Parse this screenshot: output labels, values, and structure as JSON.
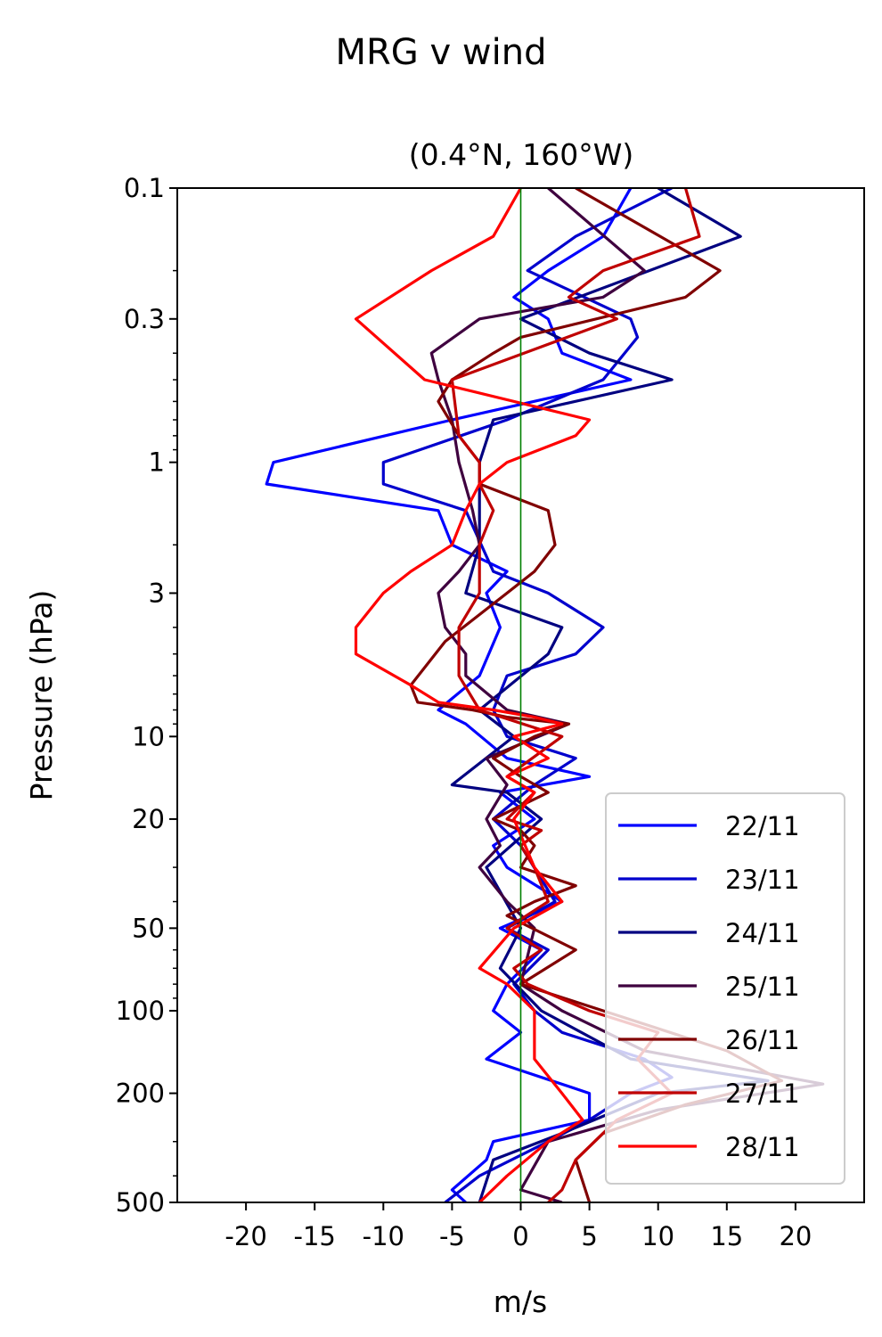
{
  "chart_data": {
    "type": "line",
    "title": "MRG v wind",
    "subtitle": "(0.4°N, 160°W)",
    "xlabel": "m/s",
    "ylabel": "Pressure (hPa)",
    "xlim": [
      -25,
      25
    ],
    "ylim": [
      500,
      0.1
    ],
    "y_scale": "log",
    "x_ticks": [
      -20,
      -15,
      -10,
      -5,
      0,
      5,
      10,
      15,
      20
    ],
    "x_tick_labels": [
      "-20",
      "-15",
      "-10",
      "-5",
      "0",
      "5",
      "10",
      "15",
      "20"
    ],
    "y_ticks": [
      0.1,
      0.3,
      1,
      3,
      10,
      20,
      50,
      100,
      200,
      500
    ],
    "y_tick_labels": [
      "0.1",
      "0.3",
      "1",
      "3",
      "10",
      "20",
      "50",
      "100",
      "200",
      "500"
    ],
    "zero_line_color": "#008000",
    "legend_position": "lower-right",
    "series": [
      {
        "name": "22/11",
        "color": "#0000ff",
        "points": [
          [
            8,
            0.1
          ],
          [
            6,
            0.15
          ],
          [
            2,
            0.2
          ],
          [
            -0.5,
            0.25
          ],
          [
            2,
            0.3
          ],
          [
            3,
            0.4
          ],
          [
            8,
            0.5
          ],
          [
            -5,
            0.7
          ],
          [
            -18,
            1.0
          ],
          [
            -18.5,
            1.2
          ],
          [
            -6,
            1.5
          ],
          [
            -5,
            2.0
          ],
          [
            -1,
            2.5
          ],
          [
            -2.5,
            3.0
          ],
          [
            -1.5,
            4.0
          ],
          [
            -3,
            6.0
          ],
          [
            -6,
            8.0
          ],
          [
            -4,
            9.0
          ],
          [
            -1,
            12.0
          ],
          [
            5,
            14.0
          ],
          [
            -1.5,
            16.0
          ],
          [
            1,
            20.0
          ],
          [
            -2,
            25.0
          ],
          [
            -1,
            30.0
          ],
          [
            3,
            40.0
          ],
          [
            -1.5,
            50.0
          ],
          [
            1.5,
            60.0
          ],
          [
            -1,
            80.0
          ],
          [
            -2,
            100.0
          ],
          [
            0,
            120.0
          ],
          [
            -2.5,
            150.0
          ],
          [
            5,
            200.0
          ],
          [
            5,
            250.0
          ],
          [
            -2,
            300.0
          ],
          [
            -2.5,
            350.0
          ],
          [
            -5,
            450.0
          ],
          [
            -4,
            500.0
          ]
        ]
      },
      {
        "name": "23/11",
        "color": "#0000cd",
        "points": [
          [
            11,
            0.1
          ],
          [
            4,
            0.15
          ],
          [
            0.5,
            0.2
          ],
          [
            8,
            0.3
          ],
          [
            8.5,
            0.35
          ],
          [
            6,
            0.5
          ],
          [
            -1,
            0.7
          ],
          [
            -10,
            1.0
          ],
          [
            -10,
            1.2
          ],
          [
            -4,
            1.5
          ],
          [
            -2,
            2.5
          ],
          [
            2,
            3.0
          ],
          [
            6,
            4.0
          ],
          [
            4,
            5.0
          ],
          [
            -1,
            6.0
          ],
          [
            -2,
            8.0
          ],
          [
            -1,
            10.0
          ],
          [
            4,
            12.0
          ],
          [
            1,
            15.0
          ],
          [
            -2,
            20.0
          ],
          [
            0,
            25.0
          ],
          [
            2.5,
            40.0
          ],
          [
            -1,
            50.0
          ],
          [
            2,
            60.0
          ],
          [
            -0.5,
            80.0
          ],
          [
            1,
            100.0
          ],
          [
            3,
            120.0
          ],
          [
            9,
            150.0
          ],
          [
            11,
            175.0
          ],
          [
            8,
            200.0
          ],
          [
            5,
            250.0
          ],
          [
            2,
            300.0
          ],
          [
            -3,
            400.0
          ],
          [
            -5.5,
            500.0
          ]
        ]
      },
      {
        "name": "24/11",
        "color": "#000080",
        "points": [
          [
            10,
            0.1
          ],
          [
            16,
            0.15
          ],
          [
            0,
            0.3
          ],
          [
            5,
            0.4
          ],
          [
            11,
            0.5
          ],
          [
            -2,
            0.7
          ],
          [
            -3,
            1.0
          ],
          [
            -3,
            2.0
          ],
          [
            -4,
            3.0
          ],
          [
            3,
            4.0
          ],
          [
            2,
            5.0
          ],
          [
            -3,
            8.0
          ],
          [
            -0.5,
            10.0
          ],
          [
            -5,
            15.0
          ],
          [
            -1,
            16.0
          ],
          [
            1.5,
            20.0
          ],
          [
            -2.5,
            30.0
          ],
          [
            0,
            50.0
          ],
          [
            -1.5,
            70.0
          ],
          [
            1.5,
            100.0
          ],
          [
            8,
            150.0
          ],
          [
            18,
            180.0
          ],
          [
            10,
            200.0
          ],
          [
            3,
            280.0
          ],
          [
            -2,
            350.0
          ],
          [
            -3,
            500.0
          ]
        ]
      },
      {
        "name": "25/11",
        "color": "#3f003f",
        "points": [
          [
            2,
            0.1
          ],
          [
            9,
            0.2
          ],
          [
            6,
            0.25
          ],
          [
            -3,
            0.3
          ],
          [
            -6.5,
            0.4
          ],
          [
            -6,
            0.5
          ],
          [
            -5,
            0.7
          ],
          [
            -4.5,
            1.0
          ],
          [
            -3.5,
            1.5
          ],
          [
            -3,
            2.0
          ],
          [
            -4.5,
            2.5
          ],
          [
            -6,
            3.0
          ],
          [
            -5.5,
            4.0
          ],
          [
            -4,
            5.0
          ],
          [
            -4,
            6.0
          ],
          [
            -1,
            8.0
          ],
          [
            3.5,
            9.0
          ],
          [
            -2.5,
            12.0
          ],
          [
            -1,
            15.0
          ],
          [
            -2.5,
            20.0
          ],
          [
            -1.5,
            25.0
          ],
          [
            -3,
            30.0
          ],
          [
            -1,
            40.0
          ],
          [
            1,
            50.0
          ],
          [
            0,
            80.0
          ],
          [
            3,
            100.0
          ],
          [
            9,
            140.0
          ],
          [
            22,
            185.0
          ],
          [
            10,
            230.0
          ],
          [
            2,
            300.0
          ],
          [
            0,
            450.0
          ],
          [
            3,
            500.0
          ]
        ]
      },
      {
        "name": "26/11",
        "color": "#800000",
        "points": [
          [
            4,
            0.1
          ],
          [
            14.5,
            0.2
          ],
          [
            12,
            0.25
          ],
          [
            0,
            0.35
          ],
          [
            -2,
            0.4
          ],
          [
            -5,
            0.5
          ],
          [
            -6,
            0.6
          ],
          [
            -4.5,
            0.8
          ],
          [
            -3,
            1.0
          ],
          [
            -3,
            1.2
          ],
          [
            2,
            1.5
          ],
          [
            2.5,
            2.0
          ],
          [
            1,
            2.5
          ],
          [
            -1,
            3.0
          ],
          [
            -5.5,
            4.5
          ],
          [
            -8,
            6.5
          ],
          [
            -7.5,
            7.5
          ],
          [
            -3.5,
            8.0
          ],
          [
            -1,
            8.5
          ],
          [
            3.5,
            9.0
          ],
          [
            1,
            10.0
          ],
          [
            -2,
            12.0
          ],
          [
            0,
            14.0
          ],
          [
            2,
            16.0
          ],
          [
            -2,
            20.0
          ],
          [
            0,
            22.0
          ],
          [
            1,
            25.0
          ],
          [
            0,
            30.0
          ],
          [
            4,
            35.0
          ],
          [
            1,
            40.0
          ],
          [
            -1,
            45.0
          ],
          [
            4,
            60.0
          ],
          [
            0,
            80.0
          ],
          [
            6,
            100.0
          ],
          [
            15,
            140.0
          ],
          [
            19,
            180.0
          ],
          [
            12,
            220.0
          ],
          [
            6,
            280.0
          ],
          [
            4,
            350.0
          ],
          [
            5,
            500.0
          ]
        ]
      },
      {
        "name": "27/11",
        "color": "#c00000",
        "points": [
          [
            12,
            0.1
          ],
          [
            13,
            0.15
          ],
          [
            6,
            0.2
          ],
          [
            3.5,
            0.25
          ],
          [
            7,
            0.3
          ],
          [
            -5,
            0.5
          ],
          [
            -4.5,
            0.8
          ],
          [
            -3,
            1.0
          ],
          [
            -3,
            1.2
          ],
          [
            -2,
            1.5
          ],
          [
            -3,
            2.0
          ],
          [
            -3,
            3.0
          ],
          [
            -4.5,
            4.0
          ],
          [
            -4.5,
            5.0
          ],
          [
            -4.5,
            6.0
          ],
          [
            -3,
            8.0
          ],
          [
            3,
            10.0
          ],
          [
            -1,
            14.0
          ],
          [
            1,
            16.0
          ],
          [
            -1,
            20.0
          ],
          [
            1.5,
            22.0
          ],
          [
            0,
            25.0
          ],
          [
            1,
            30.0
          ],
          [
            2,
            40.0
          ],
          [
            -1,
            50.0
          ],
          [
            1.5,
            60.0
          ],
          [
            -0.5,
            70.0
          ],
          [
            0.5,
            80.0
          ],
          [
            5,
            100.0
          ],
          [
            10,
            120.0
          ],
          [
            8.5,
            150.0
          ],
          [
            11,
            200.0
          ],
          [
            7,
            250.0
          ],
          [
            4,
            350.0
          ],
          [
            3,
            450.0
          ],
          [
            2,
            500.0
          ]
        ]
      },
      {
        "name": "28/11",
        "color": "#ff0000",
        "points": [
          [
            0,
            0.1
          ],
          [
            -2,
            0.15
          ],
          [
            -6.5,
            0.2
          ],
          [
            -12,
            0.3
          ],
          [
            -7,
            0.5
          ],
          [
            5,
            0.7
          ],
          [
            4,
            0.8
          ],
          [
            -1,
            1.0
          ],
          [
            -3,
            1.2
          ],
          [
            -4,
            1.5
          ],
          [
            -5,
            2.0
          ],
          [
            -8,
            2.5
          ],
          [
            -10,
            3.0
          ],
          [
            -12,
            4.0
          ],
          [
            -12,
            5.0
          ],
          [
            -8,
            6.5
          ],
          [
            -6,
            7.5
          ],
          [
            -2,
            8.0
          ],
          [
            1,
            8.5
          ],
          [
            3,
            9.0
          ],
          [
            -0.5,
            10.0
          ],
          [
            2,
            12.0
          ],
          [
            -1,
            14.0
          ],
          [
            1,
            16.0
          ],
          [
            -0.5,
            20.0
          ],
          [
            1,
            30.0
          ],
          [
            3,
            40.0
          ],
          [
            -0.5,
            50.0
          ],
          [
            -3,
            70.0
          ],
          [
            -1,
            80.0
          ],
          [
            1,
            100.0
          ],
          [
            1,
            150.0
          ],
          [
            3,
            200.0
          ],
          [
            4.5,
            250.0
          ],
          [
            2,
            300.0
          ],
          [
            -1,
            400.0
          ],
          [
            -3,
            500.0
          ]
        ]
      }
    ]
  }
}
